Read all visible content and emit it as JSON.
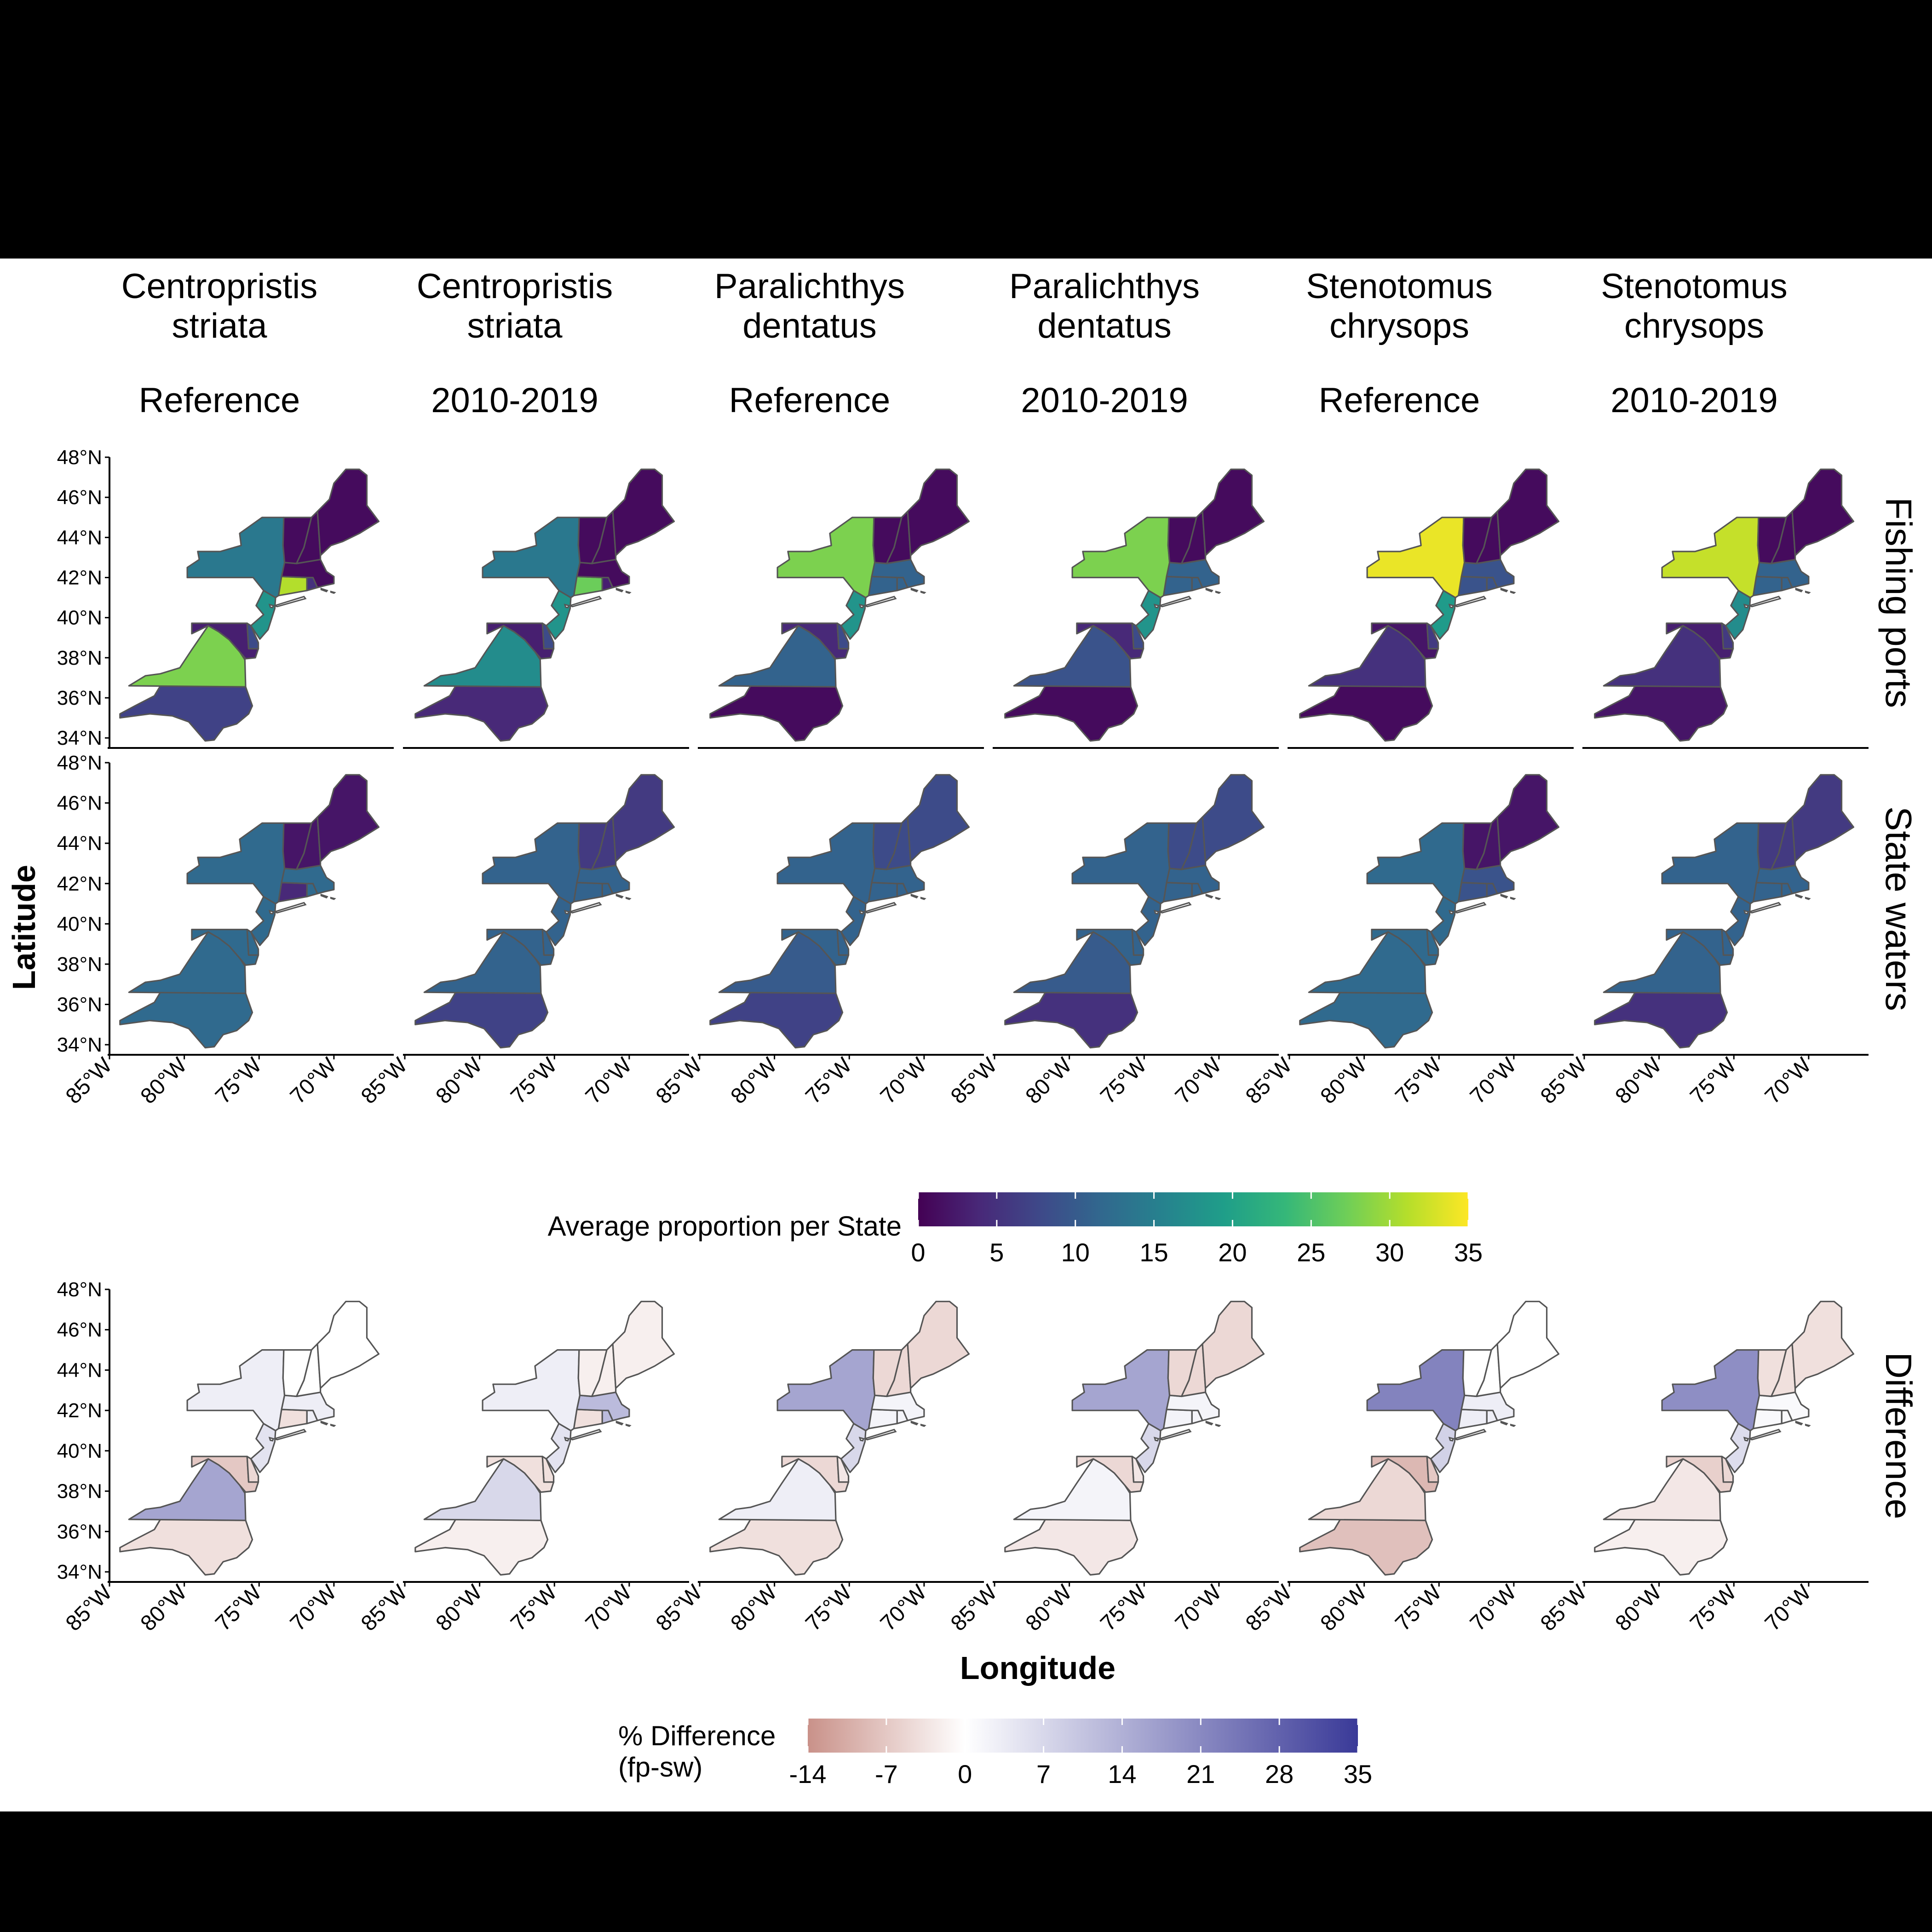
{
  "chart_data": {
    "type": "heatmap",
    "map_kind": "choropleth",
    "columns": [
      {
        "species": "Centropristis striata",
        "species_lines": [
          "Centropristis",
          "striata"
        ],
        "period": "Reference"
      },
      {
        "species": "Centropristis striata",
        "species_lines": [
          "Centropristis",
          "striata"
        ],
        "period": "2010-2019"
      },
      {
        "species": "Paralichthys dentatus",
        "species_lines": [
          "Paralichthys",
          "dentatus"
        ],
        "period": "Reference"
      },
      {
        "species": "Paralichthys dentatus",
        "species_lines": [
          "Paralichthys",
          "dentatus"
        ],
        "period": "2010-2019"
      },
      {
        "species": "Stenotomus chrysops",
        "species_lines": [
          "Stenotomus",
          "chrysops"
        ],
        "period": "Reference"
      },
      {
        "species": "Stenotomus chrysops",
        "species_lines": [
          "Stenotomus",
          "chrysops"
        ],
        "period": "2010-2019"
      }
    ],
    "rows": [
      "Fishing ports",
      "State waters",
      "Difference"
    ],
    "xlabel": "Longitude",
    "ylabel": "Latitude",
    "x_ticks": [
      "85°W",
      "80°W",
      "75°W",
      "70°W"
    ],
    "y_ticks": [
      "48°N",
      "46°N",
      "44°N",
      "42°N",
      "40°N",
      "38°N",
      "36°N",
      "34°N"
    ],
    "xlim": [
      -85,
      -66
    ],
    "ylim": [
      33.5,
      48
    ],
    "states": [
      "ME",
      "NH",
      "VT",
      "MA",
      "RI",
      "CT",
      "NY",
      "NJ",
      "PA",
      "DE",
      "MD",
      "VA",
      "NC"
    ],
    "proportion_legend": {
      "title": "Average proportion per State",
      "ticks": [
        "0",
        "5",
        "10",
        "15",
        "20",
        "25",
        "30",
        "35"
      ],
      "min": 0,
      "max": 35,
      "colors": [
        "#440154",
        "#482878",
        "#3e4989",
        "#31688e",
        "#26828e",
        "#1f9e89",
        "#35b779",
        "#6ece58",
        "#b5de2b",
        "#fde725"
      ]
    },
    "difference_legend": {
      "title_line1": "% Difference",
      "title_line2": "(fp-sw)",
      "ticks": [
        "-14",
        "-7",
        "0",
        "7",
        "14",
        "21",
        "28",
        "35"
      ],
      "min": -14,
      "max": 35,
      "neg_color": "#c99189",
      "zero_color": "#ffffff",
      "pos_color": "#3a3a98"
    },
    "values": {
      "Fishing ports": [
        {
          "ME": 1,
          "NH": 1,
          "VT": 1,
          "MA": 1,
          "RI": 5,
          "CT": 31,
          "NY": 14,
          "NJ": 18,
          "PA": 0,
          "DE": 8,
          "MD": 3,
          "VA": 28,
          "NC": 7
        },
        {
          "ME": 1,
          "NH": 1,
          "VT": 1,
          "MA": 1,
          "RI": 3,
          "CT": 27,
          "NY": 14,
          "NJ": 18,
          "PA": 0,
          "DE": 8,
          "MD": 3,
          "VA": 17,
          "NC": 4
        },
        {
          "ME": 1,
          "NH": 1,
          "VT": 1,
          "MA": 11,
          "RI": 11,
          "CT": 11,
          "NY": 28,
          "NJ": 18,
          "PA": 0,
          "DE": 8,
          "MD": 4,
          "VA": 11,
          "NC": 1
        },
        {
          "ME": 1,
          "NH": 1,
          "VT": 1,
          "MA": 11,
          "RI": 11,
          "CT": 11,
          "NY": 28,
          "NJ": 18,
          "PA": 0,
          "DE": 8,
          "MD": 4,
          "VA": 9,
          "NC": 1
        },
        {
          "ME": 1,
          "NH": 1,
          "VT": 1,
          "MA": 9,
          "RI": 9,
          "CT": 9,
          "NY": 34,
          "NJ": 19,
          "PA": 0,
          "DE": 6,
          "MD": 2,
          "VA": 5,
          "NC": 1
        },
        {
          "ME": 1,
          "NH": 1,
          "VT": 1,
          "MA": 11,
          "RI": 11,
          "CT": 11,
          "NY": 32,
          "NJ": 17,
          "PA": 0,
          "DE": 6,
          "MD": 3,
          "VA": 5,
          "NC": 2
        }
      ],
      "State waters": [
        {
          "ME": 2,
          "NH": 2,
          "VT": 2,
          "MA": 12,
          "RI": 12,
          "CT": 4,
          "NY": 12,
          "NJ": 12,
          "PA": 0,
          "DE": 12,
          "MD": 12,
          "VA": 12,
          "NC": 12
        },
        {
          "ME": 6,
          "NH": 6,
          "VT": 6,
          "MA": 11,
          "RI": 11,
          "CT": 11,
          "NY": 11,
          "NJ": 11,
          "PA": 0,
          "DE": 11,
          "MD": 11,
          "VA": 11,
          "NC": 7
        },
        {
          "ME": 8,
          "NH": 8,
          "VT": 8,
          "MA": 11,
          "RI": 11,
          "CT": 11,
          "NY": 11,
          "NJ": 11,
          "PA": 0,
          "DE": 11,
          "MD": 11,
          "VA": 10,
          "NC": 7
        },
        {
          "ME": 8,
          "NH": 8,
          "VT": 8,
          "MA": 11,
          "RI": 11,
          "CT": 11,
          "NY": 11,
          "NJ": 11,
          "PA": 0,
          "DE": 11,
          "MD": 11,
          "VA": 10,
          "NC": 5
        },
        {
          "ME": 2,
          "NH": 2,
          "VT": 2,
          "MA": 9,
          "RI": 9,
          "CT": 9,
          "NY": 12,
          "NJ": 12,
          "PA": 0,
          "DE": 12,
          "MD": 12,
          "VA": 12,
          "NC": 12
        },
        {
          "ME": 6,
          "NH": 6,
          "VT": 6,
          "MA": 11,
          "RI": 11,
          "CT": 11,
          "NY": 11,
          "NJ": 11,
          "PA": 0,
          "DE": 11,
          "MD": 11,
          "VA": 11,
          "NC": 5
        }
      ],
      "Difference": [
        {
          "ME": 0,
          "NH": 0,
          "VT": 0,
          "MA": 3,
          "RI": 3,
          "CT": -4,
          "NY": 3,
          "NJ": 5,
          "PA": 0,
          "DE": -5,
          "MD": -7,
          "VA": 16,
          "NC": -4
        },
        {
          "ME": -2,
          "NH": -2,
          "VT": -2,
          "MA": 12,
          "RI": 12,
          "CT": -4,
          "NY": 3,
          "NJ": 5,
          "PA": 0,
          "DE": -4,
          "MD": -4,
          "VA": 7,
          "NC": -2
        },
        {
          "ME": -5,
          "NH": -5,
          "VT": -5,
          "MA": 2,
          "RI": 2,
          "CT": 2,
          "NY": 16,
          "NJ": 7,
          "PA": 0,
          "DE": -3,
          "MD": -5,
          "VA": 3,
          "NC": -4
        },
        {
          "ME": -5,
          "NH": -5,
          "VT": -5,
          "MA": 2,
          "RI": 2,
          "CT": 2,
          "NY": 16,
          "NJ": 7,
          "PA": 0,
          "DE": -3,
          "MD": -5,
          "VA": 2,
          "NC": -3
        },
        {
          "ME": 0,
          "NH": 0,
          "VT": 0,
          "MA": 3,
          "RI": 3,
          "CT": 3,
          "NY": 22,
          "NJ": 8,
          "PA": 0,
          "DE": -7,
          "MD": -9,
          "VA": -5,
          "NC": -8
        },
        {
          "ME": -4,
          "NH": -4,
          "VT": -4,
          "MA": 1,
          "RI": 1,
          "CT": 1,
          "NY": 20,
          "NJ": 6,
          "PA": 0,
          "DE": -5,
          "MD": -6,
          "VA": -3,
          "NC": -2
        }
      ]
    }
  }
}
